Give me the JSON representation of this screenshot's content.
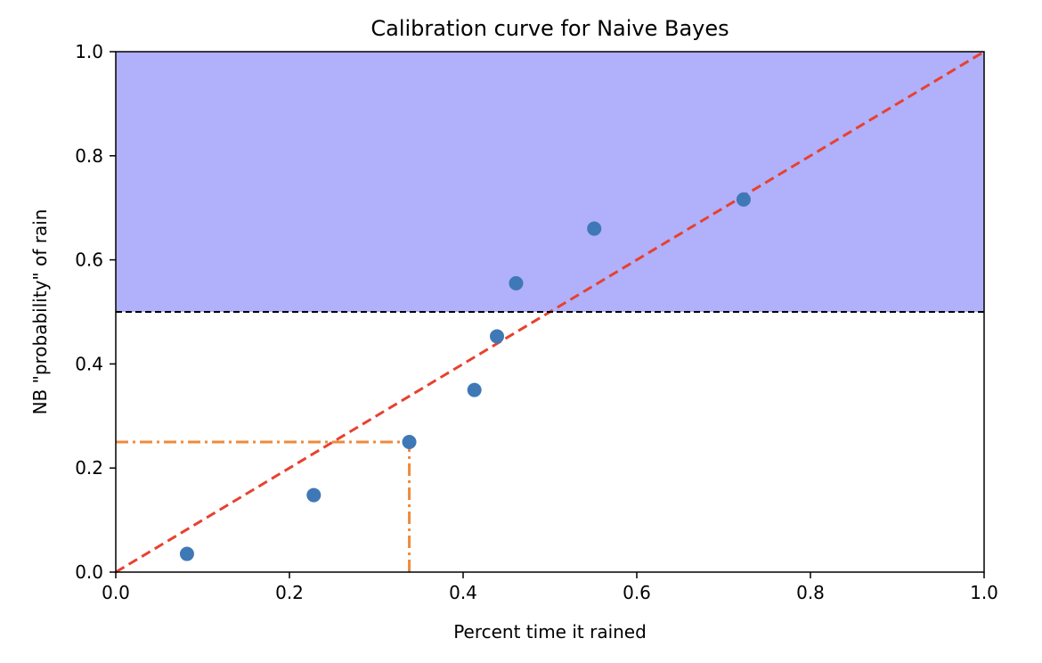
{
  "chart_data": {
    "type": "scatter",
    "title": "Calibration curve for Naive Bayes",
    "xlabel": "Percent time it rained",
    "ylabel": "NB \"probability\" of rain",
    "xlim": [
      0.0,
      1.0
    ],
    "ylim": [
      0.0,
      1.0
    ],
    "xticks": [
      "0.0",
      "0.2",
      "0.4",
      "0.6",
      "0.8",
      "1.0"
    ],
    "yticks": [
      "0.0",
      "0.2",
      "0.4",
      "0.6",
      "0.8",
      "1.0"
    ],
    "grid": false,
    "points": [
      {
        "x": 0.082,
        "y": 0.035
      },
      {
        "x": 0.228,
        "y": 0.148
      },
      {
        "x": 0.338,
        "y": 0.25
      },
      {
        "x": 0.413,
        "y": 0.35
      },
      {
        "x": 0.439,
        "y": 0.453
      },
      {
        "x": 0.461,
        "y": 0.555
      },
      {
        "x": 0.551,
        "y": 0.66
      },
      {
        "x": 0.723,
        "y": 0.716
      }
    ],
    "shaded_region": {
      "y_from": 0.5,
      "y_to": 1.0,
      "color": "#b0b0fb"
    },
    "reference_lines": [
      {
        "kind": "diagonal",
        "from": [
          0.0,
          0.0
        ],
        "to": [
          1.0,
          1.0
        ],
        "color": "#e8412f",
        "style": "dashed"
      },
      {
        "kind": "hline",
        "y": 0.5,
        "color": "#000000",
        "style": "dashed"
      },
      {
        "kind": "hline_segment",
        "y": 0.25,
        "x_from": 0.0,
        "x_to": 0.338,
        "color": "#ef8a3a",
        "style": "dashdot"
      },
      {
        "kind": "vline_segment",
        "x": 0.338,
        "y_from": 0.0,
        "y_to": 0.25,
        "color": "#ef8a3a",
        "style": "dashdot"
      }
    ],
    "point_color": "#3f78b6"
  }
}
